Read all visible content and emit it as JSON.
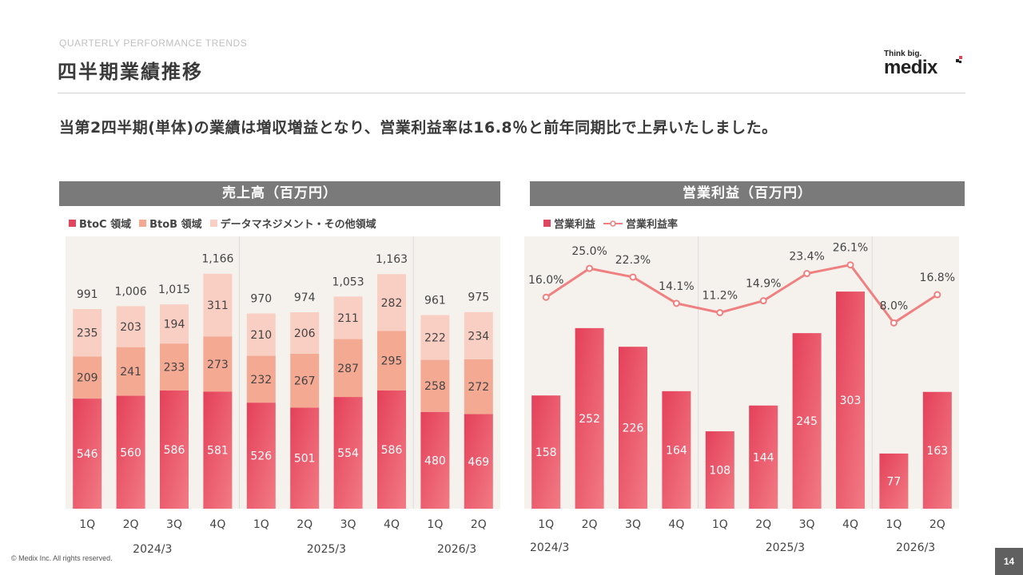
{
  "header": {
    "eyebrow": "QUARTERLY PERFORMANCE TRENDS",
    "title": "四半期業績推移",
    "logo_tagline": "Think big.",
    "logo_word": "medix"
  },
  "headline": "当第2四半期(単体)の業績は増収増益となり、営業利益率は16.8％と前年同期比で上昇いたしました。",
  "footer": {
    "copyright": "© Medix Inc. All rights reserved.",
    "page_number": "14"
  },
  "colors": {
    "accent": "#e0465d",
    "btoc": "#e0465d",
    "btob": "#f4a993",
    "other": "#f9cfc4",
    "panel_bg": "#f5f2ee",
    "rate_line": "#f08080",
    "header_bar": "#7a7a7a"
  },
  "chart_data": [
    {
      "type": "bar",
      "stacked": true,
      "title": "売上高（百万円）",
      "categories": [
        "1Q",
        "2Q",
        "3Q",
        "4Q",
        "1Q",
        "2Q",
        "3Q",
        "4Q",
        "1Q",
        "2Q"
      ],
      "groups": [
        {
          "label": "2024/3",
          "start": 0,
          "count": 4
        },
        {
          "label": "2025/3",
          "start": 4,
          "count": 4
        },
        {
          "label": "2026/3",
          "start": 8,
          "count": 2
        }
      ],
      "series": [
        {
          "name": "BtoC 領域",
          "values": [
            546,
            560,
            586,
            581,
            526,
            501,
            554,
            586,
            480,
            469
          ]
        },
        {
          "name": "BtoB 領域",
          "values": [
            209,
            241,
            233,
            273,
            232,
            267,
            287,
            295,
            258,
            272
          ]
        },
        {
          "name": "データマネジメント・その他領域",
          "values": [
            235,
            203,
            194,
            311,
            210,
            206,
            211,
            282,
            222,
            234
          ]
        }
      ],
      "totals": [
        "991",
        "1,006",
        "1,015",
        "1,166",
        "970",
        "974",
        "1,053",
        "1,163",
        "961",
        "975"
      ],
      "ylim": [
        0,
        1350
      ]
    },
    {
      "type": "bar+line",
      "title": "営業利益（百万円）",
      "categories": [
        "1Q",
        "2Q",
        "3Q",
        "4Q",
        "1Q",
        "2Q",
        "3Q",
        "4Q",
        "1Q",
        "2Q"
      ],
      "groups": [
        {
          "label": "2024/3",
          "start": 0,
          "count": 4
        },
        {
          "label": "2025/3",
          "start": 4,
          "count": 4
        },
        {
          "label": "2026/3",
          "start": 8,
          "count": 2
        }
      ],
      "series": [
        {
          "name": "営業利益",
          "kind": "bar",
          "values": [
            158,
            252,
            226,
            164,
            108,
            144,
            245,
            303,
            77,
            163
          ]
        },
        {
          "name": "営業利益率",
          "kind": "line",
          "values": [
            16.0,
            25.0,
            22.3,
            14.1,
            11.2,
            14.9,
            23.4,
            26.1,
            8.0,
            16.8
          ],
          "labels": [
            "16.0%",
            "25.0%",
            "22.3%",
            "14.1%",
            "11.2%",
            "14.9%",
            "23.4%",
            "26.1%",
            "8.0%",
            "16.8%"
          ]
        }
      ],
      "ylim_bar": [
        0,
        380
      ],
      "ylim_rate": [
        -50,
        35
      ]
    }
  ]
}
